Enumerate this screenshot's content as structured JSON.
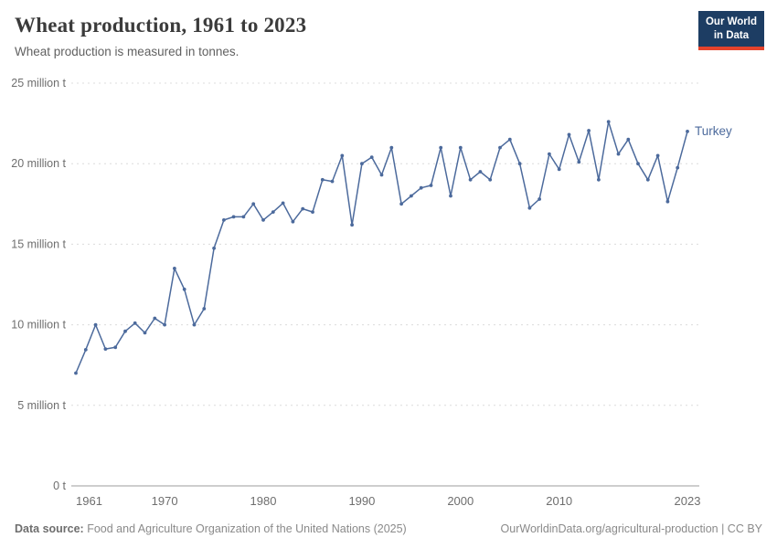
{
  "header": {
    "title": "Wheat production, 1961 to 2023",
    "subtitle": "Wheat production is measured in tonnes.",
    "logo": {
      "line1": "Our World",
      "line2": "in Data",
      "bg_color": "#1d3d63",
      "accent_color": "#e5432c"
    }
  },
  "footer": {
    "source_label": "Data source:",
    "source_text": " Food and Agriculture Organization of the United Nations (2025)",
    "credit": "OurWorldinData.org/agricultural-production | CC BY"
  },
  "chart_data": {
    "type": "line",
    "title": "Wheat production, 1961 to 2023",
    "subtitle": "Wheat production is measured in tonnes.",
    "unit": "million tonnes",
    "ylim": [
      0,
      25
    ],
    "grid": "horizontal-dashed",
    "legend_position": "end-of-line",
    "x_ticks": [
      1961,
      1970,
      1980,
      1990,
      2000,
      2010,
      2023
    ],
    "y_ticks": [
      {
        "value": 0,
        "label": "0 t"
      },
      {
        "value": 5,
        "label": "5 million t"
      },
      {
        "value": 10,
        "label": "10 million t"
      },
      {
        "value": 15,
        "label": "15 million t"
      },
      {
        "value": 20,
        "label": "20 million t"
      },
      {
        "value": 25,
        "label": "25 million t"
      }
    ],
    "x": [
      1961,
      1962,
      1963,
      1964,
      1965,
      1966,
      1967,
      1968,
      1969,
      1970,
      1971,
      1972,
      1973,
      1974,
      1975,
      1976,
      1977,
      1978,
      1979,
      1980,
      1981,
      1982,
      1983,
      1984,
      1985,
      1986,
      1987,
      1988,
      1989,
      1990,
      1991,
      1992,
      1993,
      1994,
      1995,
      1996,
      1997,
      1998,
      1999,
      2000,
      2001,
      2002,
      2003,
      2004,
      2005,
      2006,
      2007,
      2008,
      2009,
      2010,
      2011,
      2012,
      2013,
      2014,
      2015,
      2016,
      2017,
      2018,
      2019,
      2020,
      2021,
      2022,
      2023
    ],
    "series": [
      {
        "name": "Turkey",
        "color": "#4c6a9c",
        "values": [
          7.0,
          8.45,
          10.0,
          8.5,
          8.6,
          9.6,
          10.1,
          9.5,
          10.4,
          10.0,
          13.5,
          12.2,
          10.0,
          11.0,
          14.75,
          16.5,
          16.7,
          16.7,
          17.5,
          16.5,
          17.0,
          17.55,
          16.4,
          17.2,
          17.0,
          19.0,
          18.9,
          20.5,
          16.2,
          20.0,
          20.4,
          19.3,
          21.0,
          17.5,
          18.0,
          18.5,
          18.65,
          21.0,
          18.0,
          21.0,
          19.0,
          19.5,
          19.0,
          21.0,
          21.5,
          20.0,
          17.25,
          17.8,
          20.6,
          19.65,
          21.8,
          20.1,
          22.05,
          19.0,
          22.6,
          20.6,
          21.5,
          20.0,
          19.0,
          20.5,
          17.65,
          19.75,
          22.0
        ]
      }
    ]
  }
}
